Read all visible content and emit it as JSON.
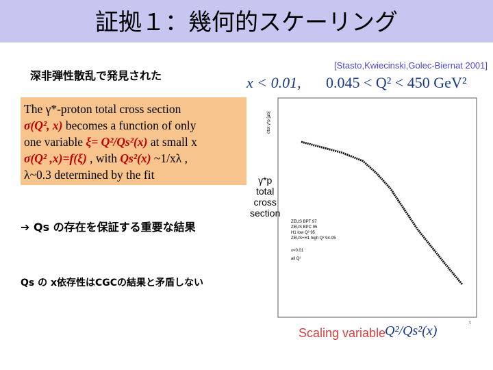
{
  "header": {
    "title": "証拠１：幾何的スケーリング"
  },
  "reference": "[Stasto,Kwiecinski,Golec-Biernat 2001]",
  "intro": "深非弾性散乱で発見された",
  "box": {
    "lines": [
      [
        "The γ*-proton total cross section"
      ],
      [
        "σ(Q², x)",
        " becomes a function of only"
      ],
      [
        "one variable ",
        "ξ= Q²/Qs²(x)",
        "  at small x"
      ],
      [
        "σ(Q² ,x)=f(ξ)",
        " , with  ",
        "Qs²(x)",
        " ~1/xλ ,"
      ],
      [
        "λ~0.3 determined by the fit"
      ]
    ]
  },
  "point1": "Qs の存在を保証する重要な結果",
  "point2": "Qs の x依存性はCGCの結果と矛盾しない",
  "figure": {
    "condition_left": "x < 0.01,",
    "condition_right": "0.045 < Q² < 450 GeV²",
    "side_label": [
      "γ*p",
      "total",
      "cross",
      "section"
    ],
    "y_label": "σtot γ*p [μb]",
    "x_label": "τ",
    "legend": [
      "ZEUS BPT 97",
      "ZEUS BPC 95",
      "H1 low Q² 95",
      "ZEUS+H1 high Q² 94-95",
      "x<0.01",
      "all Q²"
    ],
    "caption_left": "Scaling variable",
    "caption_right": "Q²/Qs²(x)"
  }
}
